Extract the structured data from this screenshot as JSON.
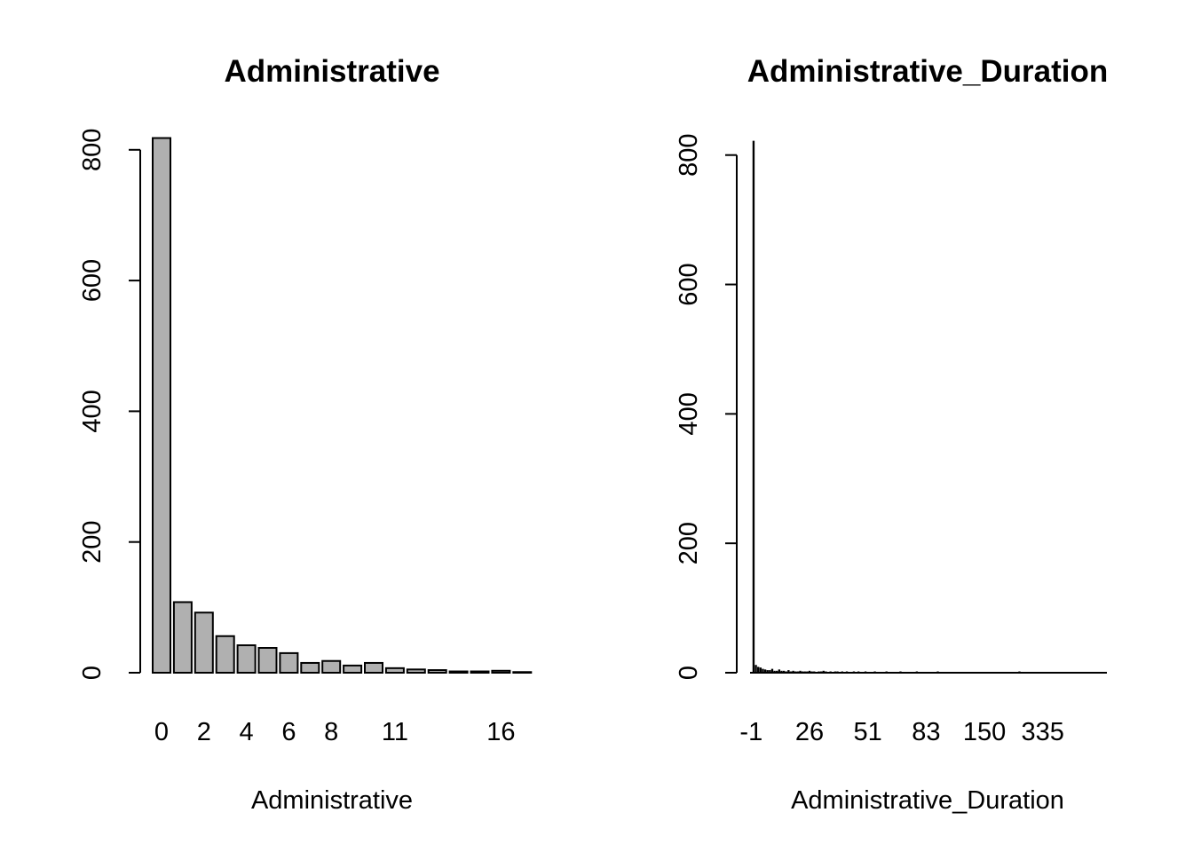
{
  "chart_data": [
    {
      "type": "bar",
      "title": "Administrative",
      "xlabel": "Administrative",
      "ylabel": "",
      "ylim": [
        0,
        820
      ],
      "yticks": [
        0,
        200,
        400,
        600,
        800
      ],
      "categories": [
        "0",
        "1",
        "2",
        "3",
        "4",
        "5",
        "6",
        "7",
        "8",
        "9",
        "10",
        "11",
        "12",
        "13",
        "14",
        "15",
        "16",
        "17"
      ],
      "x_tick_labels_shown": [
        "0",
        "2",
        "4",
        "6",
        "8",
        "11",
        "16"
      ],
      "values": [
        818,
        108,
        92,
        56,
        42,
        38,
        30,
        15,
        18,
        11,
        15,
        7,
        5,
        4,
        2,
        2,
        3,
        1
      ],
      "bar_color": "#b0b0b0",
      "grid": false
    },
    {
      "type": "bar",
      "title": "Administrative_Duration",
      "xlabel": "Administrative_Duration",
      "ylabel": "",
      "ylim": [
        0,
        820
      ],
      "yticks": [
        0,
        200,
        400,
        600,
        800
      ],
      "x_tick_labels_shown": [
        "-1",
        "26",
        "51",
        "83",
        "150",
        "335"
      ],
      "x_tick_value_positions": [
        0,
        25,
        50,
        75,
        100,
        125
      ],
      "values": [
        0,
        822,
        12,
        9,
        8,
        6,
        5,
        4,
        4,
        6,
        3,
        3,
        5,
        3,
        3,
        2,
        4,
        2,
        3,
        2,
        2,
        3,
        2,
        2,
        2,
        3,
        2,
        2,
        1,
        2,
        2,
        3,
        2,
        1,
        2,
        1,
        2,
        2,
        1,
        2,
        1,
        2,
        1,
        1,
        2,
        1,
        2,
        1,
        1,
        2,
        1,
        1,
        1,
        2,
        1,
        1,
        1,
        1,
        2,
        1,
        1,
        1,
        1,
        1,
        2,
        1,
        1,
        1,
        1,
        1,
        1,
        2,
        1,
        1,
        1,
        1,
        1,
        1,
        1,
        1,
        2,
        1,
        1,
        1,
        1,
        1,
        1,
        1,
        1,
        1,
        1,
        1,
        1,
        1,
        1,
        1,
        1,
        1,
        1,
        1,
        1,
        1,
        1,
        1,
        1,
        1,
        1,
        1,
        1,
        1,
        1,
        1,
        1,
        1,
        1,
        2,
        1,
        1,
        1,
        1,
        1,
        1,
        1,
        1,
        1,
        1,
        1,
        1,
        1,
        1,
        1,
        1,
        1,
        1,
        1,
        1,
        1,
        1,
        1,
        1,
        1,
        1,
        1,
        1,
        1,
        1,
        1,
        1,
        1,
        1,
        1,
        1,
        1
      ],
      "bar_color": "#b0b0b0",
      "grid": false
    }
  ]
}
